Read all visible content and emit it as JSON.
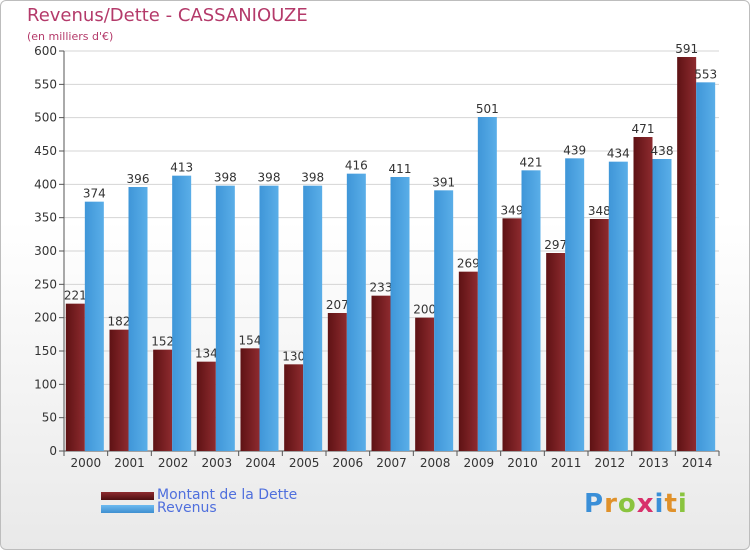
{
  "chart_data": {
    "type": "bar",
    "title": "Revenus/Dette - CASSANIOUZE",
    "subtitle": "(en milliers d'€)",
    "categories": [
      "2000",
      "2001",
      "2002",
      "2003",
      "2004",
      "2005",
      "2006",
      "2007",
      "2008",
      "2009",
      "2010",
      "2011",
      "2012",
      "2013",
      "2014"
    ],
    "series": [
      {
        "name": "Montant de la Dette",
        "color": "#7a1f22",
        "values": [
          221,
          182,
          152,
          134,
          154,
          130,
          207,
          233,
          200,
          269,
          349,
          297,
          348,
          471,
          591
        ]
      },
      {
        "name": "Revenus",
        "color": "#4da3e2",
        "values": [
          374,
          396,
          413,
          398,
          398,
          398,
          416,
          411,
          391,
          501,
          421,
          439,
          434,
          438,
          553
        ]
      }
    ],
    "ylim": [
      0,
      600
    ],
    "yticks": [
      0,
      50,
      100,
      150,
      200,
      250,
      300,
      350,
      400,
      450,
      500,
      550,
      600
    ],
    "grid": true,
    "legend_position": "bottom-left"
  },
  "branding": {
    "logo_text": "Proxiti",
    "logo_letter_colors": [
      "#3a8fd8",
      "#e0912a",
      "#8ac43f",
      "#d8306b",
      "#3a8fd8",
      "#e0912a",
      "#8ac43f"
    ]
  }
}
